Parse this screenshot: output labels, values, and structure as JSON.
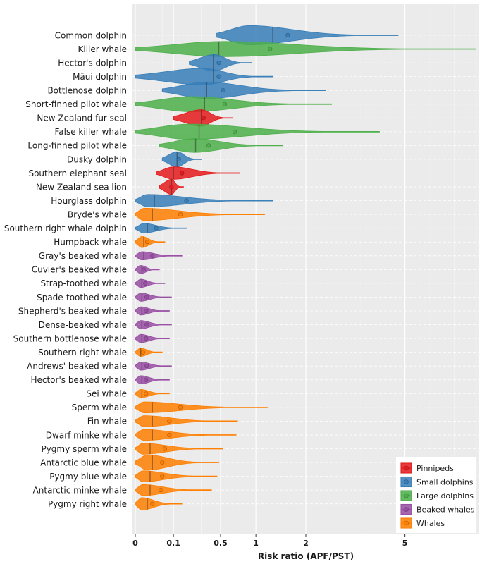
{
  "chart_data": {
    "type": "violin",
    "xlabel": "Risk ratio (APF/PST)",
    "x_scale": "sqrt",
    "xlim": [
      0,
      8
    ],
    "x_ticks": [
      0,
      0.1,
      0.5,
      1,
      2,
      5
    ],
    "x_tick_labels": [
      "0",
      "0.1",
      "0.5",
      "1",
      "2",
      "5"
    ],
    "legend": {
      "position": "bottom-right",
      "entries": [
        {
          "name": "Pinnipeds",
          "color": "#e41a1c"
        },
        {
          "name": "Small dolphins",
          "color": "#377eb8"
        },
        {
          "name": "Large dolphins",
          "color": "#4daf4a"
        },
        {
          "name": "Beaked whales",
          "color": "#984ea3"
        },
        {
          "name": "Whales",
          "color": "#ff7f00"
        }
      ]
    },
    "series": [
      {
        "name": "Common dolphin",
        "group": "Small dolphins",
        "min": 0.45,
        "max": 4.75,
        "median": 1.3,
        "mean": 1.6,
        "peak": 0.9,
        "width": 0.7
      },
      {
        "name": "Killer whale",
        "group": "Large dolphins",
        "min": 0.0,
        "max": 7.95,
        "median": 0.48,
        "mean": 1.25,
        "peak": 0.55,
        "width": 0.55
      },
      {
        "name": "Hector's dolphin",
        "group": "Small dolphins",
        "min": 0.2,
        "max": 0.93,
        "median": 0.42,
        "mean": 0.48,
        "peak": 0.43,
        "width": 0.6
      },
      {
        "name": "Māui dolphin",
        "group": "Small dolphins",
        "min": 0.0,
        "max": 1.3,
        "median": 0.42,
        "mean": 0.48,
        "peak": 0.32,
        "width": 0.6
      },
      {
        "name": "Bottlenose dolphin",
        "group": "Small dolphins",
        "min": 0.05,
        "max": 2.5,
        "median": 0.35,
        "mean": 0.53,
        "peak": 0.35,
        "width": 0.6
      },
      {
        "name": "Short-finned pilot whale",
        "group": "Large dolphins",
        "min": 0.0,
        "max": 2.65,
        "median": 0.33,
        "mean": 0.55,
        "peak": 0.22,
        "width": 0.55
      },
      {
        "name": "New Zealand fur seal",
        "group": "Pinnipeds",
        "min": 0.1,
        "max": 0.65,
        "median": 0.3,
        "mean": 0.32,
        "peak": 0.3,
        "width": 0.6
      },
      {
        "name": "False killer whale",
        "group": "Large dolphins",
        "min": 0.0,
        "max": 4.1,
        "median": 0.28,
        "mean": 0.68,
        "peak": 0.2,
        "width": 0.55
      },
      {
        "name": "Long-finned pilot whale",
        "group": "Large dolphins",
        "min": 0.04,
        "max": 1.5,
        "median": 0.25,
        "mean": 0.37,
        "peak": 0.24,
        "width": 0.5
      },
      {
        "name": "Dusky dolphin",
        "group": "Small dolphins",
        "min": 0.05,
        "max": 0.3,
        "median": 0.12,
        "mean": 0.13,
        "peak": 0.12,
        "width": 0.55
      },
      {
        "name": "Southern elephant seal",
        "group": "Pinnipeds",
        "min": 0.03,
        "max": 0.75,
        "median": 0.1,
        "mean": 0.15,
        "peak": 0.1,
        "width": 0.45
      },
      {
        "name": "New Zealand sea lion",
        "group": "Pinnipeds",
        "min": 0.04,
        "max": 0.16,
        "median": 0.09,
        "mean": 0.09,
        "peak": 0.09,
        "width": 0.55
      },
      {
        "name": "Hourglass dolphin",
        "group": "Small dolphins",
        "min": 0.0,
        "max": 1.3,
        "median": 0.025,
        "mean": 0.18,
        "peak": 0.01,
        "width": 0.45
      },
      {
        "name": "Bryde's whale",
        "group": "Whales",
        "min": 0.0,
        "max": 1.15,
        "median": 0.02,
        "mean": 0.14,
        "peak": 0.005,
        "width": 0.45
      },
      {
        "name": "Southern right whale dolphin",
        "group": "Small dolphins",
        "min": 0.0,
        "max": 0.18,
        "median": 0.01,
        "mean": 0.03,
        "peak": 0.005,
        "width": 0.35
      },
      {
        "name": "Humpback whale",
        "group": "Whales",
        "min": 0.0,
        "max": 0.06,
        "median": 0.005,
        "mean": 0.01,
        "peak": 0.003,
        "width": 0.4
      },
      {
        "name": "Gray's beaked whale",
        "group": "Beaked whales",
        "min": 0.0,
        "max": 0.15,
        "median": 0.005,
        "mean": 0.02,
        "peak": 0.003,
        "width": 0.3
      },
      {
        "name": "Cuvier's beaked whale",
        "group": "Beaked whales",
        "min": 0.0,
        "max": 0.04,
        "median": 0.003,
        "mean": 0.005,
        "peak": 0.002,
        "width": 0.3
      },
      {
        "name": "Strap-toothed whale",
        "group": "Beaked whales",
        "min": 0.0,
        "max": 0.06,
        "median": 0.003,
        "mean": 0.007,
        "peak": 0.002,
        "width": 0.3
      },
      {
        "name": "Spade-toothed whale",
        "group": "Beaked whales",
        "min": 0.0,
        "max": 0.09,
        "median": 0.003,
        "mean": 0.009,
        "peak": 0.002,
        "width": 0.3
      },
      {
        "name": "Shepherd's beaked whale",
        "group": "Beaked whales",
        "min": 0.0,
        "max": 0.08,
        "median": 0.003,
        "mean": 0.008,
        "peak": 0.002,
        "width": 0.3
      },
      {
        "name": "Dense-beaked whale",
        "group": "Beaked whales",
        "min": 0.0,
        "max": 0.09,
        "median": 0.003,
        "mean": 0.009,
        "peak": 0.002,
        "width": 0.3
      },
      {
        "name": "Southern bottlenose whale",
        "group": "Beaked whales",
        "min": 0.0,
        "max": 0.08,
        "median": 0.003,
        "mean": 0.008,
        "peak": 0.002,
        "width": 0.3
      },
      {
        "name": "Southern right whale",
        "group": "Whales",
        "min": 0.0,
        "max": 0.05,
        "median": 0.002,
        "mean": 0.004,
        "peak": 0.002,
        "width": 0.3
      },
      {
        "name": "Andrews' beaked whale",
        "group": "Beaked whales",
        "min": 0.0,
        "max": 0.09,
        "median": 0.003,
        "mean": 0.009,
        "peak": 0.002,
        "width": 0.3
      },
      {
        "name": "Hector's beaked whale",
        "group": "Beaked whales",
        "min": 0.0,
        "max": 0.08,
        "median": 0.003,
        "mean": 0.008,
        "peak": 0.002,
        "width": 0.3
      },
      {
        "name": "Sei whale",
        "group": "Whales",
        "min": 0.0,
        "max": 0.08,
        "median": 0.003,
        "mean": 0.008,
        "peak": 0.002,
        "width": 0.3
      },
      {
        "name": "Sperm whale",
        "group": "Whales",
        "min": 0.0,
        "max": 1.2,
        "median": 0.02,
        "mean": 0.14,
        "peak": 0.005,
        "width": 0.4
      },
      {
        "name": "Fin whale",
        "group": "Whales",
        "min": 0.0,
        "max": 0.72,
        "median": 0.02,
        "mean": 0.08,
        "peak": 0.005,
        "width": 0.4
      },
      {
        "name": "Dwarf minke whale",
        "group": "Whales",
        "min": 0.0,
        "max": 0.7,
        "median": 0.02,
        "mean": 0.08,
        "peak": 0.005,
        "width": 0.4
      },
      {
        "name": "Pygmy sperm whale",
        "group": "Whales",
        "min": 0.0,
        "max": 0.53,
        "median": 0.015,
        "mean": 0.06,
        "peak": 0.004,
        "width": 0.4
      },
      {
        "name": "Antarctic blue whale",
        "group": "Whales",
        "min": 0.0,
        "max": 0.48,
        "median": 0.02,
        "mean": 0.05,
        "peak": 0.01,
        "width": 0.55
      },
      {
        "name": "Pygmy blue whale",
        "group": "Whales",
        "min": 0.0,
        "max": 0.46,
        "median": 0.015,
        "mean": 0.05,
        "peak": 0.004,
        "width": 0.4
      },
      {
        "name": "Antarctic minke whale",
        "group": "Whales",
        "min": 0.0,
        "max": 0.4,
        "median": 0.015,
        "mean": 0.045,
        "peak": 0.004,
        "width": 0.4
      },
      {
        "name": "Pygmy right whale",
        "group": "Whales",
        "min": 0.0,
        "max": 0.15,
        "median": 0.01,
        "mean": 0.02,
        "peak": 0.003,
        "width": 0.45
      }
    ]
  }
}
